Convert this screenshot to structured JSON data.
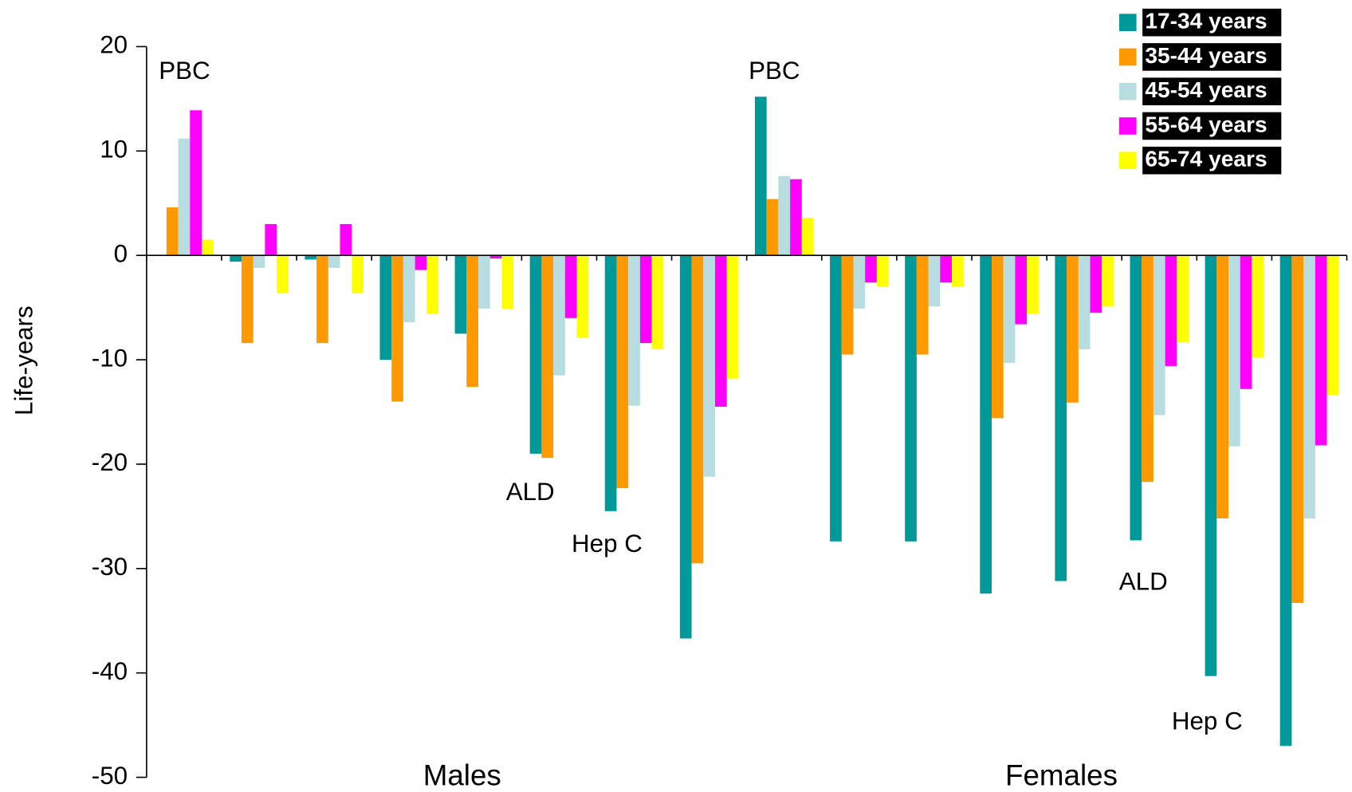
{
  "chart_data": {
    "type": "bar",
    "ylabel": "Life-years",
    "categories": [
      null,
      null,
      null,
      null,
      null,
      null,
      null,
      null,
      null,
      null,
      null,
      null,
      null,
      null,
      null,
      null
    ],
    "series": [
      {
        "name": "17-34 years",
        "color": "#009999",
        "values": [
          0,
          -0.6,
          -0.4,
          -10,
          -7.5,
          -19,
          -24.5,
          -36.7,
          15.2,
          -27.4,
          -27.4,
          -32.4,
          -31.2,
          -27.3,
          -40.3,
          -47
        ]
      },
      {
        "name": "35-44 years",
        "color": "#ff9900",
        "values": [
          4.6,
          -8.4,
          -8.4,
          -14,
          -12.6,
          -19.4,
          -22.3,
          -29.5,
          5.4,
          -9.5,
          -9.5,
          -15.6,
          -14.1,
          -21.7,
          -25.2,
          -33.3
        ]
      },
      {
        "name": "45-54 years",
        "color": "#b7dde0",
        "values": [
          11.2,
          -1.2,
          -1.2,
          -6.4,
          -5.1,
          -11.5,
          -14.4,
          -21.2,
          7.6,
          -5.1,
          -4.9,
          -10.3,
          -9,
          -15.3,
          -18.3,
          -25.2
        ]
      },
      {
        "name": "55-64 years",
        "color": "#ff00ff",
        "values": [
          13.9,
          3,
          3,
          -1.4,
          -0.3,
          -6,
          -8.4,
          -14.5,
          7.3,
          -2.6,
          -2.6,
          -6.6,
          -5.5,
          -10.6,
          -12.8,
          -18.2
        ]
      },
      {
        "name": "65-74 years",
        "color": "#ffff00",
        "values": [
          1.5,
          -3.6,
          -3.6,
          -5.6,
          -5.1,
          -7.9,
          -9,
          -11.8,
          3.6,
          -3,
          -3,
          -5.6,
          -4.9,
          -8.3,
          -9.8,
          -13.4
        ]
      }
    ],
    "annotations": [
      "PBC",
      "ALD",
      "Hep C",
      "Males",
      "PBC",
      "ALD",
      "Hep C",
      "Females"
    ],
    "ylim": [
      -50,
      20
    ],
    "yticks": [
      -50,
      -40,
      -30,
      -20,
      -10,
      0,
      10,
      20
    ],
    "legend": "upper right"
  }
}
